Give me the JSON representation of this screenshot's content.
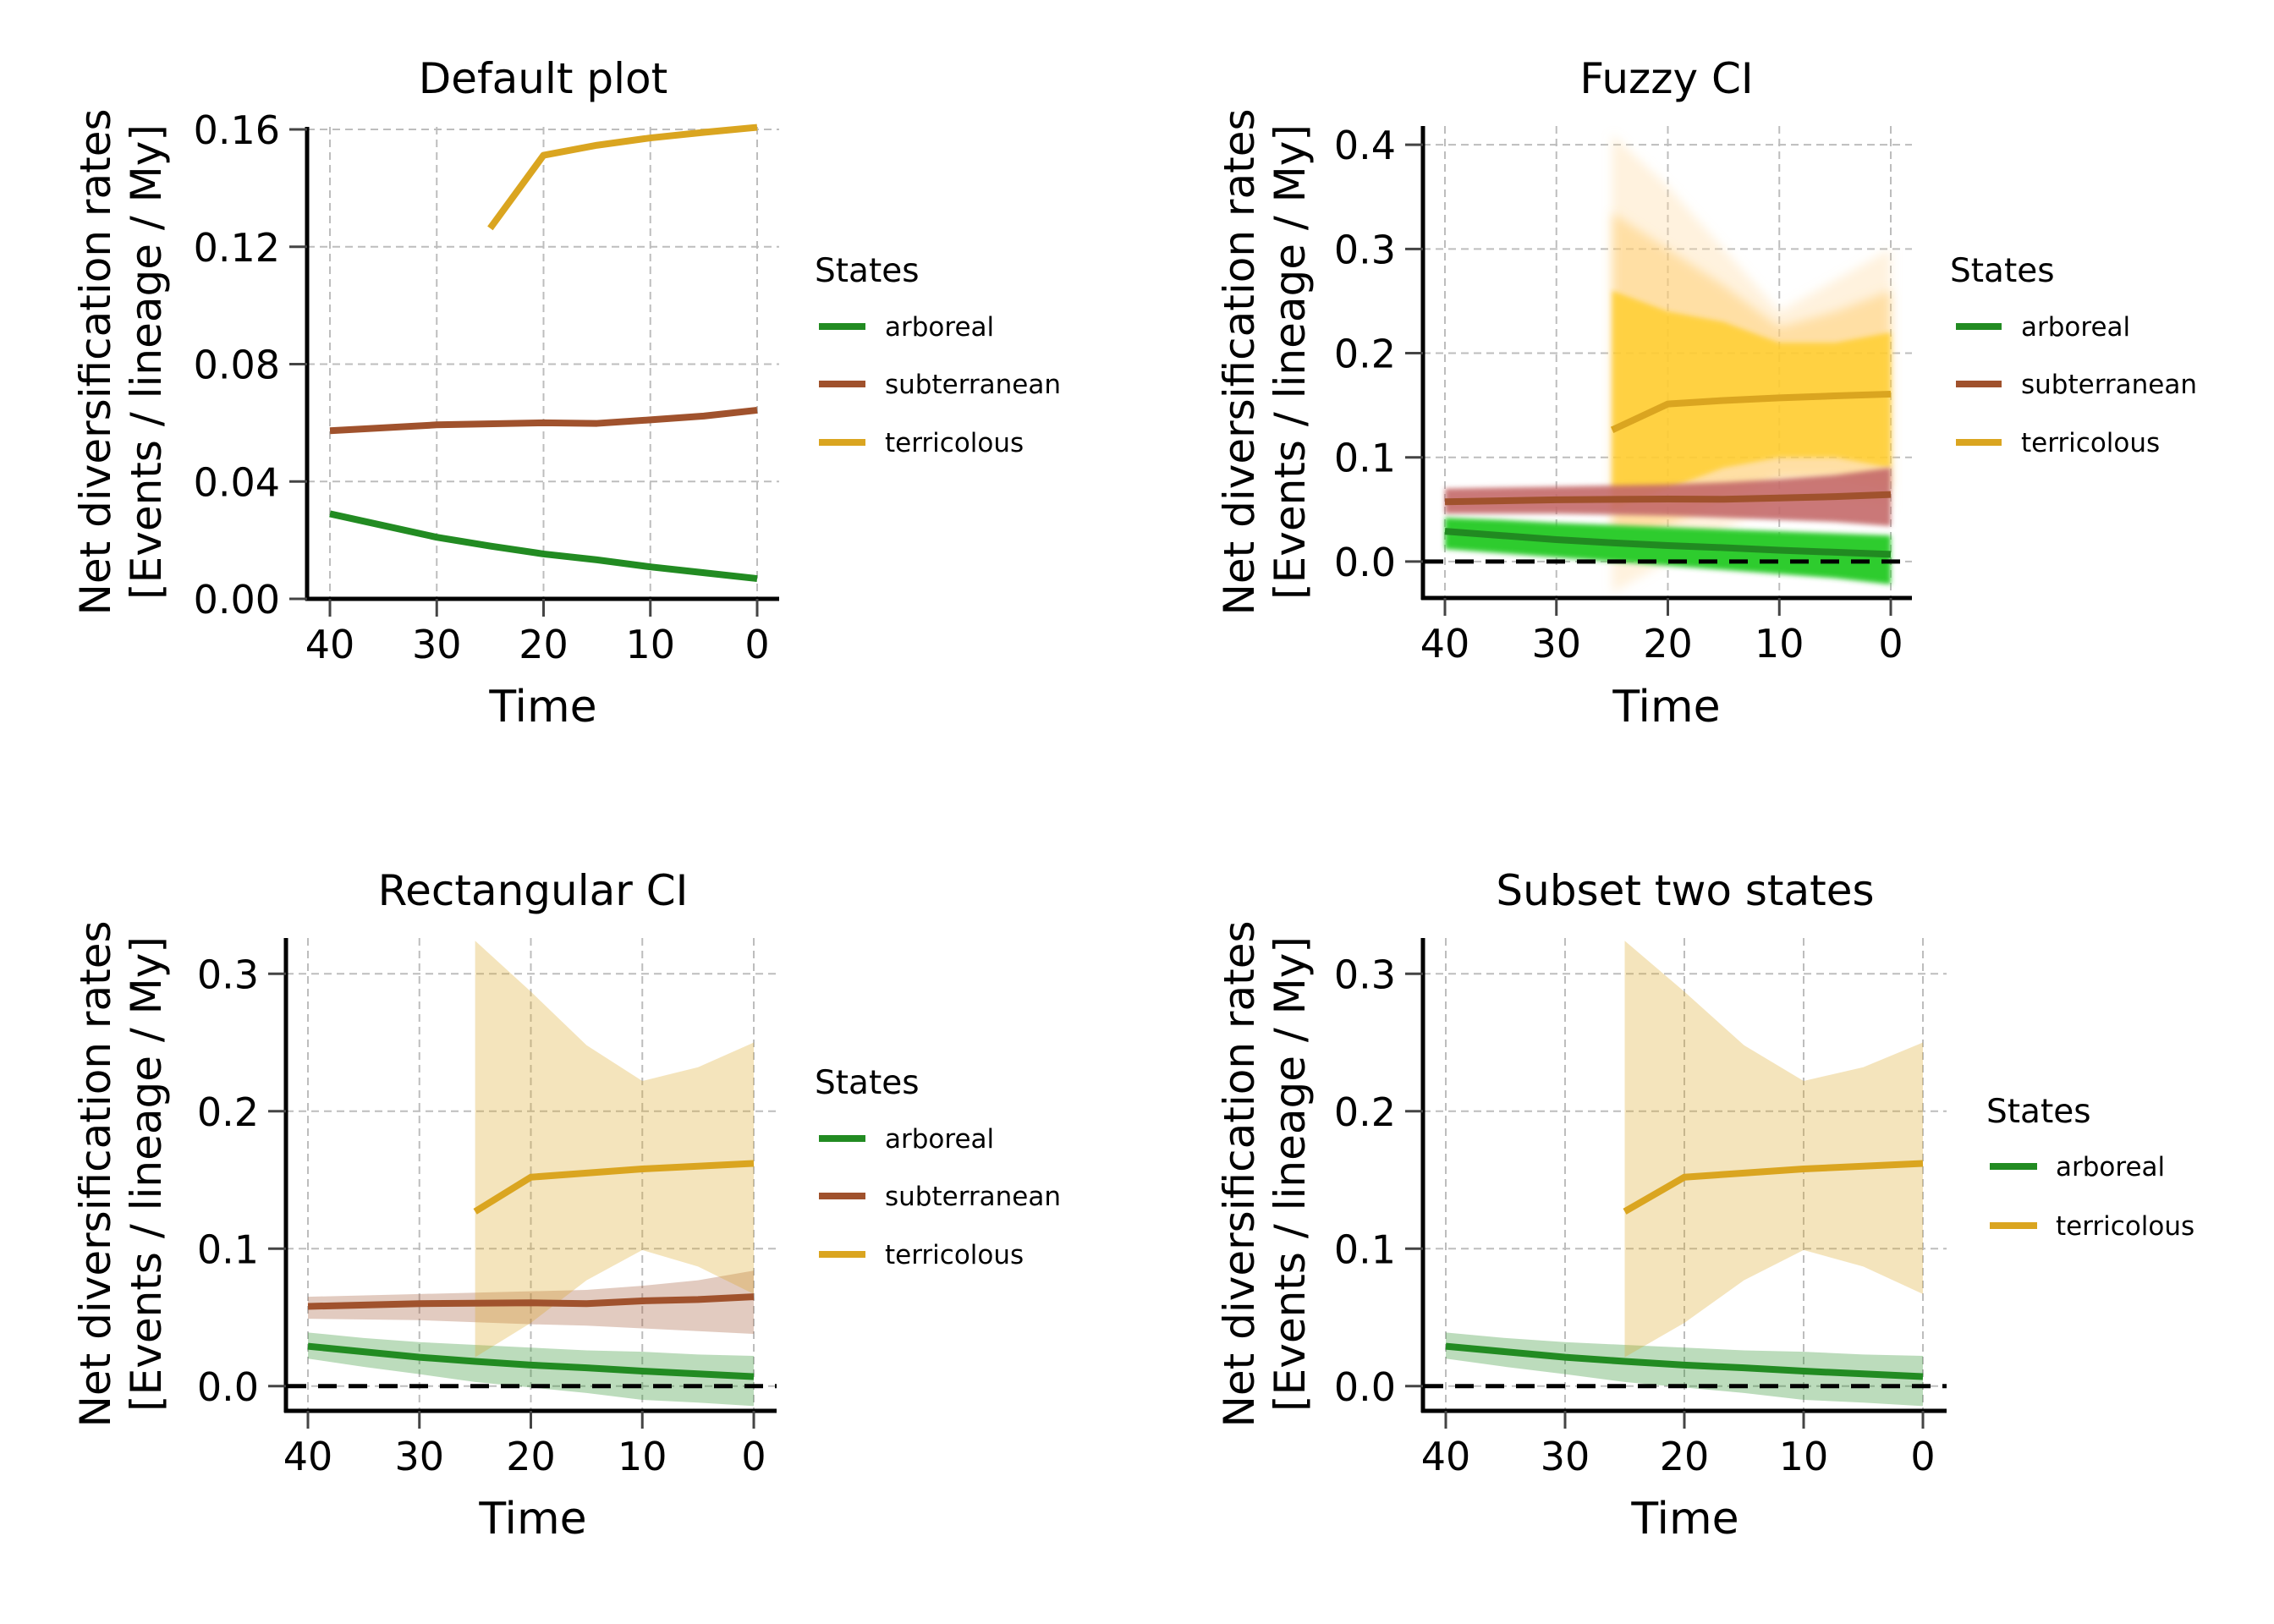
{
  "figure": {
    "legend_title": "States",
    "states": [
      {
        "key": "arboreal",
        "label": "arboreal",
        "color": "#228b22",
        "band_color": "#228b22",
        "fuzzy_color": "#2ecc2e"
      },
      {
        "key": "subterranean",
        "label": "subterranean",
        "color": "#a0522d",
        "band_color": "#a0522d",
        "fuzzy_color": "#c46a6a"
      },
      {
        "key": "terricolous",
        "label": "terricolous",
        "color": "#daa520",
        "band_color": "#daa520",
        "fuzzy_color": "#ffcc22"
      }
    ]
  },
  "chart_data": [
    {
      "type": "line",
      "title": "Default plot",
      "xlabel": "Time",
      "ylabel": [
        "Net diversification rates",
        "[Events / lineage / My]"
      ],
      "x_reversed": true,
      "xlim": [
        42,
        -2
      ],
      "ylim": [
        0.0,
        0.16
      ],
      "xticks": [
        40,
        30,
        20,
        10,
        0
      ],
      "xtick_labels": [
        "40",
        "30",
        "20",
        "10",
        "0"
      ],
      "yticks": [
        0.0,
        0.04,
        0.08,
        0.12,
        0.16
      ],
      "ytick_labels": [
        "0.00",
        "0.04",
        "0.08",
        "0.12",
        "0.16"
      ],
      "grid": true,
      "ci": "none",
      "zero_line": false,
      "legend": {
        "title": "States",
        "placement": "right",
        "entries": [
          "arboreal",
          "subterranean",
          "terricolous"
        ]
      },
      "series": [
        {
          "name": "arboreal",
          "x": [
            40,
            35,
            30,
            25,
            20,
            15,
            10,
            5,
            0
          ],
          "y": [
            0.029,
            0.025,
            0.021,
            0.018,
            0.0153,
            0.0133,
            0.0109,
            0.0089,
            0.0069
          ]
        },
        {
          "name": "subterranean",
          "x": [
            40,
            30,
            20,
            15,
            10,
            5,
            0
          ],
          "y": [
            0.0573,
            0.0593,
            0.06,
            0.0598,
            0.061,
            0.0623,
            0.0643
          ]
        },
        {
          "name": "terricolous",
          "x": [
            25,
            20,
            15,
            10,
            5,
            0
          ],
          "y": [
            0.1263,
            0.1512,
            0.1546,
            0.1571,
            0.159,
            0.1607
          ]
        }
      ]
    },
    {
      "type": "line",
      "title": "Fuzzy CI",
      "xlabel": "Time",
      "ylabel": [
        "Net diversification rates",
        "[Events / lineage / My]"
      ],
      "x_reversed": true,
      "xlim": [
        42,
        -2
      ],
      "ylim": [
        -0.035,
        0.418
      ],
      "xticks": [
        40,
        30,
        20,
        10,
        0
      ],
      "xtick_labels": [
        "40",
        "30",
        "20",
        "10",
        "0"
      ],
      "yticks": [
        0.0,
        0.1,
        0.2,
        0.3,
        0.4
      ],
      "ytick_labels": [
        "0.0",
        "0.1",
        "0.2",
        "0.3",
        "0.4"
      ],
      "grid": true,
      "ci": "fuzzy",
      "zero_line": true,
      "legend": {
        "title": "States",
        "placement": "right",
        "entries": [
          "arboreal",
          "subterranean",
          "terricolous"
        ]
      },
      "series": [
        {
          "name": "arboreal",
          "x": [
            40,
            35,
            30,
            25,
            20,
            15,
            10,
            5,
            0
          ],
          "y": [
            0.029,
            0.025,
            0.021,
            0.018,
            0.0153,
            0.0133,
            0.0109,
            0.0089,
            0.0069
          ],
          "ci_lower": [
            0.012,
            0.008,
            0.004,
            0.0,
            -0.004,
            -0.008,
            -0.012,
            -0.016,
            -0.022
          ],
          "ci_upper": [
            0.042,
            0.04,
            0.037,
            0.035,
            0.033,
            0.031,
            0.029,
            0.027,
            0.025
          ]
        },
        {
          "name": "subterranean",
          "x": [
            40,
            30,
            20,
            15,
            10,
            5,
            0
          ],
          "y": [
            0.0573,
            0.0593,
            0.06,
            0.0598,
            0.061,
            0.0623,
            0.0643
          ],
          "ci_lower": [
            0.046,
            0.046,
            0.044,
            0.042,
            0.04,
            0.038,
            0.034
          ],
          "ci_upper": [
            0.07,
            0.072,
            0.074,
            0.076,
            0.079,
            0.083,
            0.09
          ]
        },
        {
          "name": "terricolous",
          "x": [
            25,
            20,
            15,
            10,
            5,
            0
          ],
          "y": [
            0.1263,
            0.1512,
            0.1546,
            0.1571,
            0.159,
            0.1607
          ],
          "ci_lower": [
            -0.03,
            0.0,
            0.03,
            0.06,
            0.06,
            0.05
          ],
          "ci_upper": [
            0.41,
            0.36,
            0.3,
            0.24,
            0.27,
            0.3
          ],
          "ci_core_lower": [
            0.05,
            0.07,
            0.09,
            0.1,
            0.1,
            0.09
          ],
          "ci_core_upper": [
            0.26,
            0.24,
            0.23,
            0.21,
            0.21,
            0.22
          ]
        }
      ]
    },
    {
      "type": "area",
      "title": "Rectangular CI",
      "xlabel": "Time",
      "ylabel": [
        "Net diversification rates",
        "[Events / lineage / My]"
      ],
      "x_reversed": true,
      "xlim": [
        42,
        -2
      ],
      "ylim": [
        -0.018,
        0.326
      ],
      "xticks": [
        40,
        30,
        20,
        10,
        0
      ],
      "xtick_labels": [
        "40",
        "30",
        "20",
        "10",
        "0"
      ],
      "yticks": [
        0.0,
        0.1,
        0.2,
        0.3
      ],
      "ytick_labels": [
        "0.0",
        "0.1",
        "0.2",
        "0.3"
      ],
      "grid": true,
      "ci": "rectangular",
      "zero_line": true,
      "legend": {
        "title": "States",
        "placement": "right",
        "entries": [
          "arboreal",
          "subterranean",
          "terricolous"
        ]
      },
      "series": [
        {
          "name": "arboreal",
          "x": [
            40,
            35,
            30,
            25,
            20,
            15,
            10,
            5,
            0
          ],
          "y": [
            0.029,
            0.025,
            0.021,
            0.018,
            0.0153,
            0.0133,
            0.0109,
            0.0089,
            0.0069
          ],
          "ci_lower": [
            0.02,
            0.014,
            0.0087,
            0.003,
            -0.001,
            -0.005,
            -0.01,
            -0.012,
            -0.0145
          ],
          "ci_upper": [
            0.039,
            0.035,
            0.032,
            0.03,
            0.028,
            0.026,
            0.025,
            0.023,
            0.022
          ]
        },
        {
          "name": "subterranean",
          "x": [
            40,
            30,
            20,
            15,
            10,
            5,
            0
          ],
          "y": [
            0.058,
            0.06,
            0.0606,
            0.06,
            0.062,
            0.063,
            0.065
          ],
          "ci_lower": [
            0.049,
            0.048,
            0.045,
            0.044,
            0.042,
            0.04,
            0.038
          ],
          "ci_upper": [
            0.065,
            0.067,
            0.069,
            0.07,
            0.073,
            0.077,
            0.084
          ]
        },
        {
          "name": "terricolous",
          "x": [
            25,
            20,
            15,
            10,
            5,
            0
          ],
          "y": [
            0.127,
            0.152,
            0.155,
            0.158,
            0.16,
            0.162
          ],
          "ci_lower": [
            0.021,
            0.046,
            0.077,
            0.099,
            0.087,
            0.067
          ],
          "ci_upper": [
            0.324,
            0.287,
            0.248,
            0.222,
            0.232,
            0.25
          ]
        }
      ]
    },
    {
      "type": "area",
      "title": "Subset two states",
      "xlabel": "Time",
      "ylabel": [
        "Net diversification rates",
        "[Events / lineage / My]"
      ],
      "x_reversed": true,
      "xlim": [
        42,
        -2
      ],
      "ylim": [
        -0.018,
        0.326
      ],
      "xticks": [
        40,
        30,
        20,
        10,
        0
      ],
      "xtick_labels": [
        "40",
        "30",
        "20",
        "10",
        "0"
      ],
      "yticks": [
        0.0,
        0.1,
        0.2,
        0.3
      ],
      "ytick_labels": [
        "0.0",
        "0.1",
        "0.2",
        "0.3"
      ],
      "grid": true,
      "ci": "rectangular",
      "zero_line": true,
      "legend": {
        "title": "States",
        "placement": "right",
        "entries": [
          "arboreal",
          "terricolous"
        ]
      },
      "series": [
        {
          "name": "arboreal",
          "x": [
            40,
            35,
            30,
            25,
            20,
            15,
            10,
            5,
            0
          ],
          "y": [
            0.029,
            0.025,
            0.021,
            0.018,
            0.0153,
            0.0133,
            0.0109,
            0.0089,
            0.0069
          ],
          "ci_lower": [
            0.02,
            0.014,
            0.0087,
            0.003,
            -0.001,
            -0.005,
            -0.01,
            -0.012,
            -0.0145
          ],
          "ci_upper": [
            0.039,
            0.035,
            0.032,
            0.03,
            0.028,
            0.026,
            0.025,
            0.023,
            0.022
          ]
        },
        {
          "name": "terricolous",
          "x": [
            25,
            20,
            15,
            10,
            5,
            0
          ],
          "y": [
            0.127,
            0.152,
            0.155,
            0.158,
            0.16,
            0.162
          ],
          "ci_lower": [
            0.021,
            0.046,
            0.077,
            0.099,
            0.087,
            0.067
          ],
          "ci_upper": [
            0.324,
            0.287,
            0.248,
            0.222,
            0.232,
            0.25
          ]
        }
      ]
    }
  ]
}
